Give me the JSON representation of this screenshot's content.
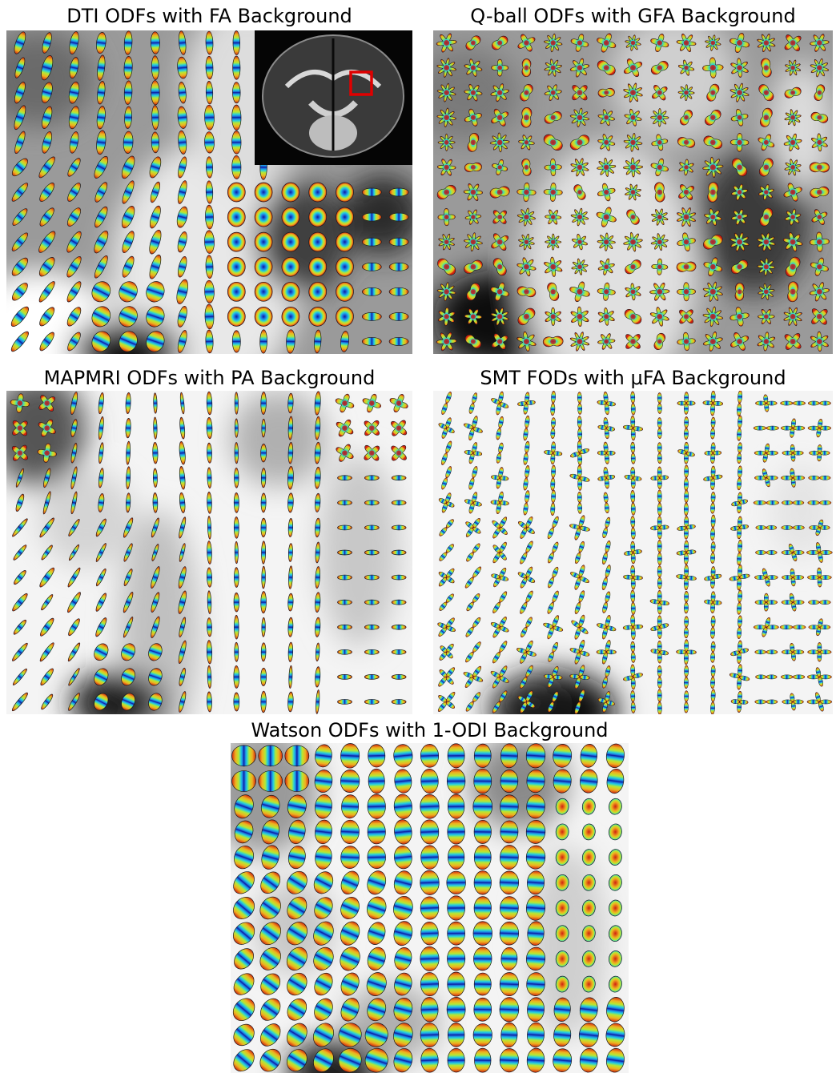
{
  "figure": {
    "panels": [
      {
        "id": "dti",
        "title": "DTI ODFs with FA Background",
        "background": "dark",
        "glyph": "ellipsoid",
        "inset": "coronal-brain-slice-with-red-roi"
      },
      {
        "id": "qball",
        "title": "Q-ball ODFs with GFA Background",
        "background": "dark",
        "glyph": "multilobe"
      },
      {
        "id": "mapmri",
        "title": "MAPMRI ODFs with PA Background",
        "background": "light",
        "glyph": "ellipsoid"
      },
      {
        "id": "smt",
        "title": "SMT FODs with μFA Background",
        "background": "light",
        "glyph": "crossing-sticks"
      },
      {
        "id": "watson",
        "title": "Watson ODFs with 1-ODI Background",
        "background": "light",
        "glyph": "ellipsoid"
      }
    ],
    "colors": {
      "roi_box": "#e00000",
      "glyph_colormap": [
        "#0a1aa0",
        "#1e7ae0",
        "#22d0e0",
        "#b8e830",
        "#f0b020",
        "#d02010"
      ]
    }
  }
}
